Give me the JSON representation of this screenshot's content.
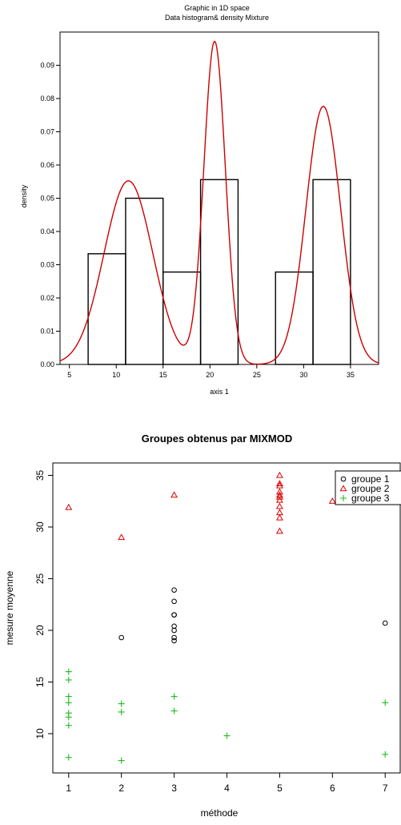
{
  "chart_data": [
    {
      "type": "bar",
      "title": "Graphic in 1D space",
      "subtitle": "Data histogram& density Mixture",
      "xlabel": "axis 1",
      "ylabel": "density",
      "xlim": [
        4,
        38
      ],
      "ylim": [
        0,
        0.1
      ],
      "xticks": [
        5,
        10,
        15,
        20,
        25,
        30,
        35
      ],
      "yticks": [
        "0.00",
        "0.01",
        "0.02",
        "0.03",
        "0.04",
        "0.05",
        "0.06",
        "0.07",
        "0.08",
        "0.09"
      ],
      "bins": [
        {
          "x0": 7,
          "x1": 11,
          "value": 0.0333
        },
        {
          "x0": 11,
          "x1": 15,
          "value": 0.05
        },
        {
          "x0": 15,
          "x1": 19,
          "value": 0.0278
        },
        {
          "x0": 19,
          "x1": 23,
          "value": 0.0556
        },
        {
          "x0": 27,
          "x1": 31,
          "value": 0.0278
        },
        {
          "x0": 31,
          "x1": 35,
          "value": 0.0556
        }
      ],
      "density_components": [
        {
          "weight": 0.36,
          "mean": 11.3,
          "sd": 2.6
        },
        {
          "weight": 0.28,
          "mean": 20.5,
          "sd": 1.15
        },
        {
          "weight": 0.36,
          "mean": 32.1,
          "sd": 1.85
        }
      ],
      "line_color": "#cc0000",
      "bar_edge_color": "#000000"
    },
    {
      "type": "scatter",
      "title": "Groupes obtenus par MIXMOD",
      "xlabel": "méthode",
      "ylabel": "mesure moyenne",
      "xlim": [
        0.7,
        7.3
      ],
      "ylim": [
        6.2,
        36.2
      ],
      "xticks": [
        1,
        2,
        3,
        4,
        5,
        6,
        7
      ],
      "yticks": [
        10,
        15,
        20,
        25,
        30,
        35
      ],
      "legend_position": "top-right",
      "series": [
        {
          "name": "groupe 1",
          "marker": "circle",
          "color": "#000000",
          "points": [
            [
              2,
              19.3
            ],
            [
              3,
              23.9
            ],
            [
              3,
              22.8
            ],
            [
              3,
              21.5
            ],
            [
              3,
              21.5
            ],
            [
              3,
              20.4
            ],
            [
              3,
              20.0
            ],
            [
              3,
              19.3
            ],
            [
              3,
              19.0
            ],
            [
              7,
              20.7
            ]
          ]
        },
        {
          "name": "groupe 2",
          "marker": "triangle",
          "color": "#dd0000",
          "points": [
            [
              1,
              31.9
            ],
            [
              2,
              29.0
            ],
            [
              3,
              33.1
            ],
            [
              5,
              35.0
            ],
            [
              5,
              34.2
            ],
            [
              5,
              34.0
            ],
            [
              5,
              33.4
            ],
            [
              5,
              33.1
            ],
            [
              5,
              32.9
            ],
            [
              5,
              32.6
            ],
            [
              5,
              32.0
            ],
            [
              5,
              31.4
            ],
            [
              5,
              30.9
            ],
            [
              5,
              29.6
            ],
            [
              6,
              32.5
            ]
          ]
        },
        {
          "name": "groupe 3",
          "marker": "plus",
          "color": "#22bb22",
          "points": [
            [
              1,
              16.0
            ],
            [
              1,
              15.2
            ],
            [
              1,
              13.6
            ],
            [
              1,
              13.0
            ],
            [
              1,
              12.0
            ],
            [
              1,
              11.6
            ],
            [
              1,
              10.8
            ],
            [
              1,
              7.7
            ],
            [
              2,
              12.9
            ],
            [
              2,
              12.1
            ],
            [
              2,
              7.4
            ],
            [
              3,
              13.6
            ],
            [
              3,
              12.2
            ],
            [
              4,
              9.8
            ],
            [
              7,
              13.0
            ],
            [
              7,
              8.0
            ]
          ]
        }
      ]
    }
  ]
}
